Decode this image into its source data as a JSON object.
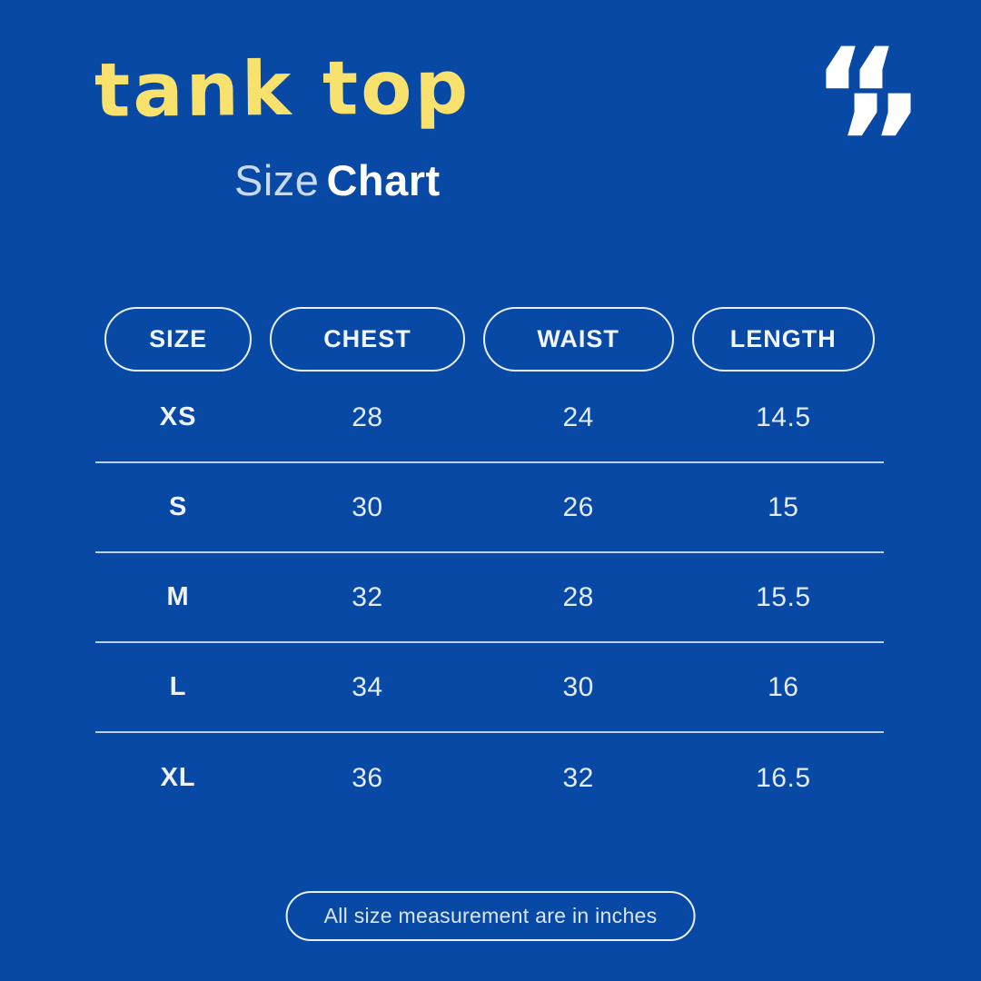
{
  "colors": {
    "background": "#0849a6",
    "accent": "#f8e16d",
    "text-soft": "#c9d9f0",
    "white": "#ffffff",
    "table-text": "#e3ebf7",
    "line": "#bcd0ea",
    "border": "#e9f0fa"
  },
  "header": {
    "title": "tank top",
    "subtitle_regular": "Size",
    "subtitle_bold": "Chart",
    "quote_open": "“",
    "quote_close": "”"
  },
  "chart_data": {
    "type": "table",
    "title": "Tank Top Size Chart",
    "columns": [
      "SIZE",
      "CHEST",
      "WAIST",
      "LENGTH"
    ],
    "rows": [
      [
        "XS",
        "28",
        "24",
        "14.5"
      ],
      [
        "S",
        "30",
        "26",
        "15"
      ],
      [
        "M",
        "32",
        "28",
        "15.5"
      ],
      [
        "L",
        "34",
        "30",
        "16"
      ],
      [
        "XL",
        "36",
        "32",
        "16.5"
      ]
    ],
    "units": "inches"
  },
  "footer": {
    "note": "All size measurement are in inches"
  }
}
